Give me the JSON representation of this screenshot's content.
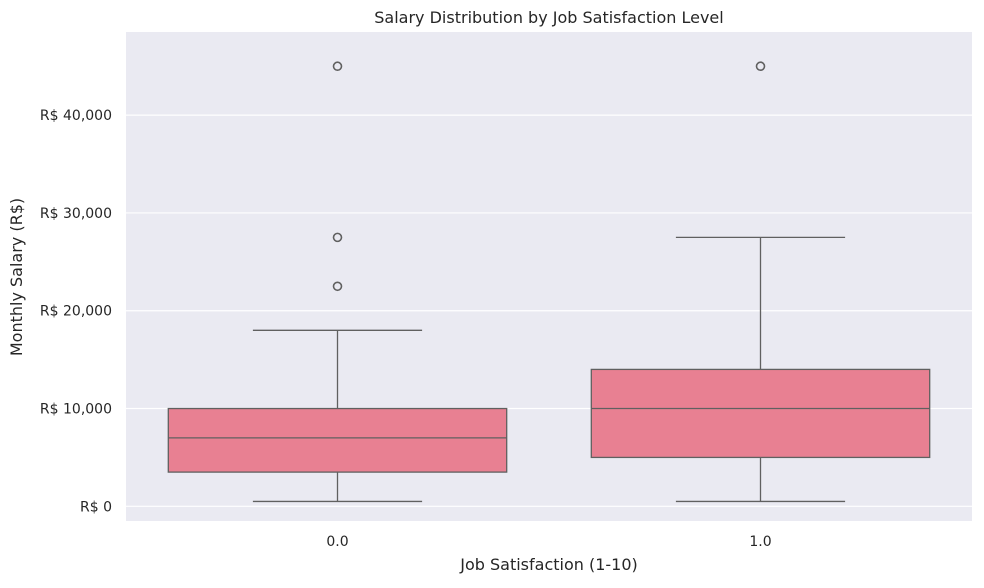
{
  "chart_data": {
    "type": "box",
    "title": "Salary Distribution by Job Satisfaction Level",
    "xlabel": "Job Satisfaction (1-10)",
    "ylabel": "Monthly Salary (R$)",
    "categories": [
      "0.0",
      "1.0"
    ],
    "y_ticks": [
      0,
      10000,
      20000,
      30000,
      40000
    ],
    "y_tick_labels": [
      "R$ 0",
      "R$ 10,000",
      "R$ 20,000",
      "R$ 30,000",
      "R$ 40,000"
    ],
    "ylim": [
      -1500,
      48500
    ],
    "grid": true,
    "boxes": [
      {
        "category": "0.0",
        "whisker_low": 500,
        "q1": 3500,
        "median": 7000,
        "q3": 10000,
        "whisker_high": 18000,
        "outliers": [
          45000,
          27500,
          22500
        ]
      },
      {
        "category": "1.0",
        "whisker_low": 500,
        "q1": 5000,
        "median": 10000,
        "q3": 14000,
        "whisker_high": 27500,
        "outliers": [
          45000
        ]
      }
    ],
    "colors": {
      "box_fill": "#e88092",
      "line": "#606060",
      "plot_background": "#eaeaf2",
      "grid": "#ffffff"
    }
  }
}
